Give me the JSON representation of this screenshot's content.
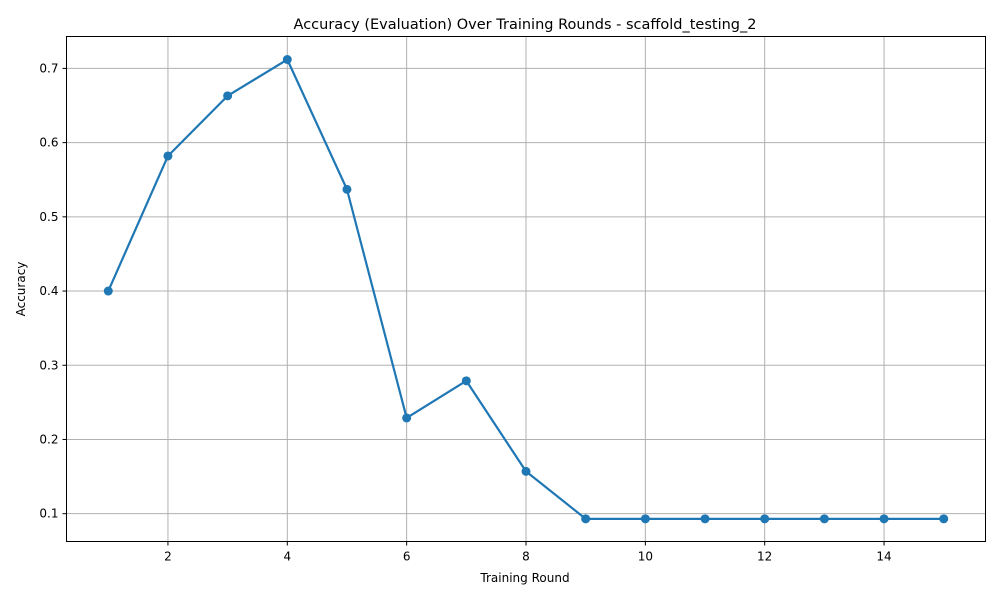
{
  "chart_data": {
    "type": "line",
    "title": "Accuracy (Evaluation) Over Training Rounds - scaffold_testing_2",
    "xlabel": "Training Round",
    "ylabel": "Accuracy",
    "x": [
      1,
      2,
      3,
      4,
      5,
      6,
      7,
      8,
      9,
      10,
      11,
      12,
      13,
      14,
      15
    ],
    "series": [
      {
        "values": [
          0.4,
          0.582,
          0.663,
          0.712,
          0.537,
          0.229,
          0.279,
          0.157,
          0.093,
          0.093,
          0.093,
          0.093,
          0.093,
          0.093,
          0.093
        ],
        "color": "#1f77b4",
        "marker": "circle"
      }
    ],
    "xlim": [
      0.3,
      15.7
    ],
    "ylim": [
      0.0625,
      0.743
    ],
    "xticks": [
      2,
      4,
      6,
      8,
      10,
      12,
      14
    ],
    "yticks": [
      0.1,
      0.2,
      0.3,
      0.4,
      0.5,
      0.6,
      0.7
    ],
    "xtick_labels": [
      "2",
      "4",
      "6",
      "8",
      "10",
      "12",
      "14"
    ],
    "ytick_labels": [
      "0.1",
      "0.2",
      "0.3",
      "0.4",
      "0.5",
      "0.6",
      "0.7"
    ],
    "grid": true,
    "legend": "none"
  }
}
